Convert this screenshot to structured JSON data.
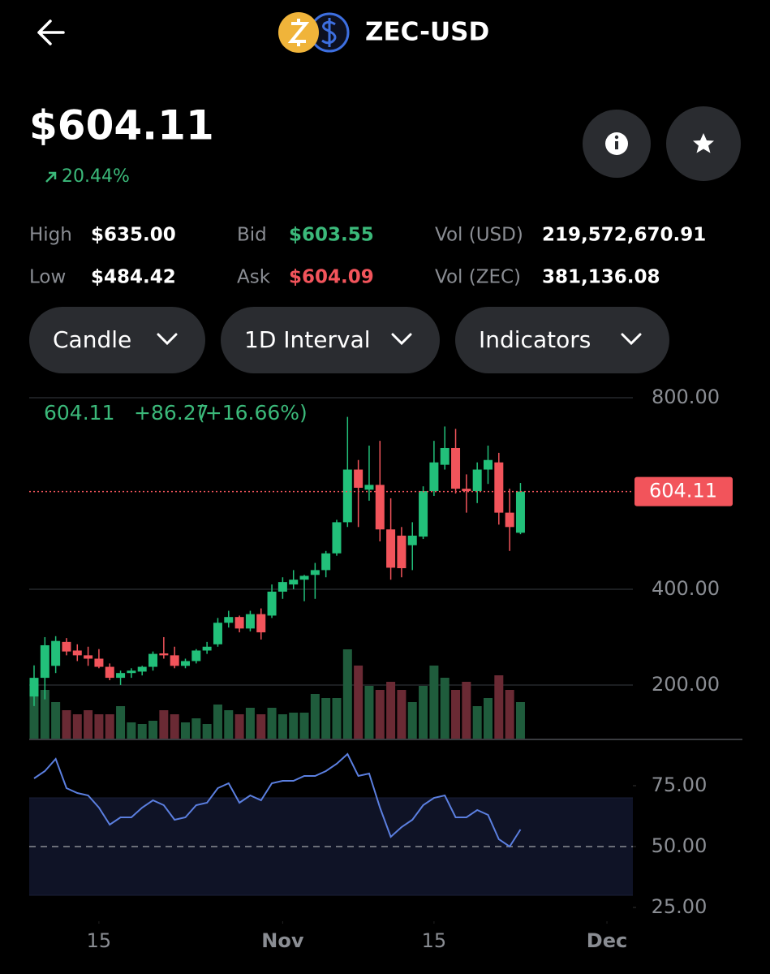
{
  "header": {
    "title": "ZEC-USD",
    "price": "$604.11",
    "change": "20.44%",
    "stats": [
      {
        "label": "High",
        "value": "$635.00"
      },
      {
        "label": "Bid",
        "value": "$603.55"
      },
      {
        "label": "Vol (USD)",
        "value": "219,572,670.91"
      },
      {
        "label": "Low",
        "value": "$484.42"
      },
      {
        "label": "Ask",
        "value": "$604.09"
      },
      {
        "label": "Vol (ZEC)",
        "value": "381,136.08"
      }
    ],
    "buttons": [
      "Candle",
      "1D Interval",
      "Indicators"
    ]
  },
  "chart_data": {
    "type": "candlestick",
    "legend": {
      "price": "604.11",
      "change": "+86.27",
      "percent": "(+16.66%)"
    },
    "x": [
      0,
      1,
      2,
      3,
      4,
      5,
      6,
      7,
      8,
      9,
      10,
      11,
      12,
      13,
      14,
      15,
      16,
      17,
      18,
      19,
      20,
      21,
      22,
      23,
      24,
      25,
      26,
      27,
      28,
      29,
      30,
      31,
      32,
      33,
      34,
      35,
      36,
      37,
      38,
      39,
      40,
      41,
      42,
      43,
      44,
      45
    ],
    "open": [
      176,
      215,
      240,
      290,
      272,
      262,
      255,
      238,
      215,
      225,
      228,
      238,
      266,
      262,
      240,
      250,
      272,
      285,
      330,
      342,
      318,
      348,
      345,
      395,
      410,
      420,
      430,
      440,
      475,
      540,
      650,
      608,
      618,
      525,
      512,
      492,
      510,
      605,
      660,
      695,
      610,
      605,
      650,
      665,
      560,
      518
    ],
    "high": [
      241,
      300,
      302,
      298,
      285,
      280,
      275,
      245,
      230,
      235,
      240,
      270,
      300,
      280,
      255,
      275,
      290,
      340,
      355,
      345,
      355,
      360,
      410,
      425,
      440,
      430,
      455,
      480,
      545,
      760,
      670,
      700,
      710,
      590,
      530,
      540,
      615,
      710,
      740,
      735,
      640,
      665,
      700,
      685,
      610,
      622
    ],
    "low": [
      156,
      170,
      225,
      262,
      250,
      240,
      235,
      210,
      200,
      215,
      220,
      230,
      255,
      235,
      235,
      245,
      265,
      280,
      320,
      310,
      312,
      295,
      340,
      380,
      400,
      375,
      380,
      425,
      470,
      530,
      530,
      585,
      500,
      420,
      425,
      440,
      505,
      595,
      650,
      600,
      560,
      580,
      620,
      535,
      480,
      515
    ],
    "close": [
      215,
      283,
      292,
      270,
      262,
      255,
      238,
      215,
      225,
      230,
      238,
      265,
      262,
      240,
      250,
      272,
      280,
      330,
      342,
      318,
      348,
      310,
      395,
      415,
      420,
      428,
      440,
      475,
      540,
      650,
      612,
      618,
      525,
      445,
      444,
      512,
      605,
      665,
      695,
      610,
      605,
      650,
      670,
      560,
      530,
      604.11
    ],
    "volume": [
      55,
      60,
      45,
      35,
      30,
      35,
      30,
      30,
      40,
      20,
      18,
      22,
      35,
      30,
      20,
      25,
      18,
      42,
      35,
      30,
      38,
      30,
      38,
      30,
      32,
      32,
      55,
      50,
      50,
      110,
      90,
      65,
      60,
      70,
      60,
      45,
      65,
      90,
      75,
      60,
      70,
      40,
      50,
      78,
      60,
      45
    ],
    "up_color": "#22c07a",
    "down_color": "#f2545b",
    "volume_up_color": "#1f5c3c",
    "volume_down_color": "#6a2a34",
    "ylim": [
      88,
      834
    ],
    "yticks": [
      {
        "value": 800,
        "label": "800.00"
      },
      {
        "value": 400,
        "label": "400.00"
      },
      {
        "value": 200,
        "label": "200.00"
      }
    ],
    "xlim": [
      -0.45,
      55.4
    ],
    "xticks": [
      {
        "value": 6,
        "label": "15"
      },
      {
        "value": 23,
        "label": "Nov"
      },
      {
        "value": 37,
        "label": "15"
      },
      {
        "value": 53,
        "label": "Dec"
      }
    ],
    "rsi": {
      "values": [
        78,
        81,
        86,
        74,
        72,
        71,
        66,
        59,
        62,
        62,
        66,
        69,
        67,
        61,
        62,
        67,
        68,
        74,
        76,
        68,
        71,
        69,
        76,
        77,
        77,
        79,
        79,
        81,
        84,
        88,
        79,
        80,
        66,
        54,
        58,
        61,
        67,
        70,
        71,
        62,
        62,
        65,
        63,
        53,
        50,
        57
      ],
      "color": "#5b7fe0",
      "ylim": [
        23,
        95
      ],
      "band": [
        30,
        70
      ],
      "dashed_line": 50,
      "yticks": [
        {
          "value": 75,
          "label": "75.00"
        },
        {
          "value": 50,
          "label": "50.00"
        },
        {
          "value": 25,
          "label": "25.00"
        }
      ]
    }
  }
}
